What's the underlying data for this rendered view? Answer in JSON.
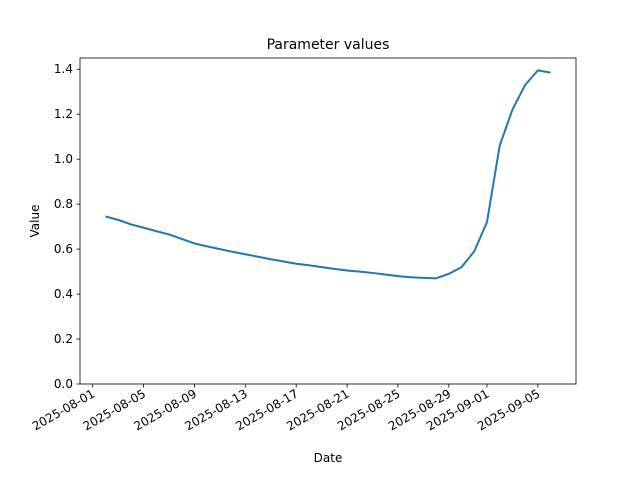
{
  "chart_data": {
    "type": "line",
    "title": "Parameter values",
    "x_label": "Date",
    "y_label": "Value",
    "x": [
      "2025-08-02",
      "2025-08-03",
      "2025-08-04",
      "2025-08-05",
      "2025-08-06",
      "2025-08-07",
      "2025-08-08",
      "2025-08-09",
      "2025-08-10",
      "2025-08-11",
      "2025-08-12",
      "2025-08-13",
      "2025-08-14",
      "2025-08-15",
      "2025-08-16",
      "2025-08-17",
      "2025-08-18",
      "2025-08-19",
      "2025-08-20",
      "2025-08-21",
      "2025-08-22",
      "2025-08-23",
      "2025-08-24",
      "2025-08-25",
      "2025-08-26",
      "2025-08-27",
      "2025-08-28",
      "2025-08-29",
      "2025-08-30",
      "2025-08-31",
      "2025-09-01",
      "2025-09-02",
      "2025-09-03",
      "2025-09-04",
      "2025-09-05",
      "2025-09-06"
    ],
    "series": [
      {
        "color": "#1f77b4",
        "values": [
          0.745,
          0.73,
          0.71,
          0.695,
          0.68,
          0.665,
          0.645,
          0.625,
          0.612,
          0.6,
          0.588,
          0.577,
          0.566,
          0.555,
          0.545,
          0.535,
          0.528,
          0.52,
          0.512,
          0.505,
          0.5,
          0.494,
          0.487,
          0.48,
          0.475,
          0.472,
          0.47,
          0.49,
          0.52,
          0.59,
          0.72,
          1.06,
          1.22,
          1.33,
          1.395,
          1.385
        ]
      }
    ],
    "xlim": [
      "2025-07-31",
      "2025-09-08"
    ],
    "xticks": [
      "2025-08-01",
      "2025-08-05",
      "2025-08-09",
      "2025-08-13",
      "2025-08-17",
      "2025-08-21",
      "2025-08-25",
      "2025-08-29",
      "2025-09-01",
      "2025-09-05"
    ],
    "ylim": [
      0,
      1.45
    ],
    "yticks": [
      {
        "value": 0,
        "label": "0.0"
      },
      0.2,
      0.4,
      0.6,
      0.8,
      {
        "value": 1,
        "label": "1.0"
      },
      1.2,
      1.4
    ]
  }
}
